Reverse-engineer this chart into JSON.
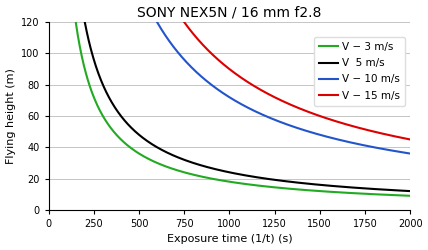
{
  "title": "SONY NEX5N / 16 mm f2.8",
  "xlabel": "Exposure time (1/t) (s)",
  "ylabel": "Flying height (m)",
  "ylim": [
    0,
    120
  ],
  "xlim": [
    0,
    2000
  ],
  "yticks": [
    0,
    20,
    40,
    60,
    80,
    100,
    120
  ],
  "xticks": [
    0,
    250,
    500,
    750,
    1000,
    1250,
    1500,
    1750,
    2000
  ],
  "series": [
    {
      "label": "V − 3 m/s",
      "color": "#22aa22",
      "k": 18000
    },
    {
      "label": "V  5 m/s",
      "color": "#000000",
      "k": 24000
    },
    {
      "label": "V − 10 m/s",
      "color": "#2255cc",
      "k": 72000
    },
    {
      "label": "V − 15 m/s",
      "color": "#dd0000",
      "k": 90000
    }
  ],
  "background_color": "#ffffff",
  "grid_color": "#bbbbbb",
  "title_fontsize": 10,
  "label_fontsize": 8,
  "tick_fontsize": 7,
  "legend_fontsize": 7.5
}
